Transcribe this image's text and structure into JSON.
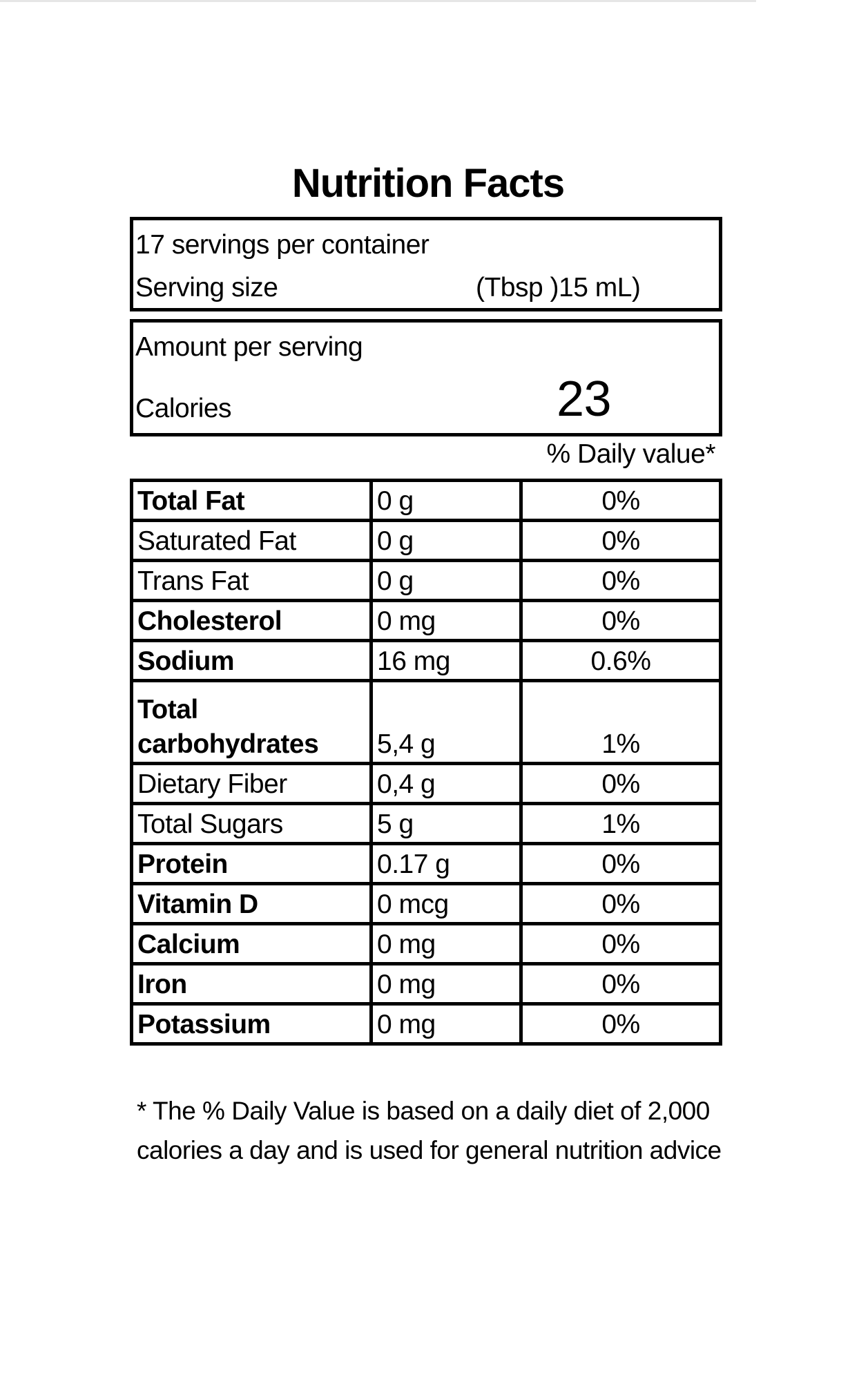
{
  "title": "Nutrition Facts",
  "servings_per_container": "17 servings per container",
  "serving_size_label": "Serving size",
  "serving_size_value": "(Tbsp )15 mL)",
  "amount_per_serving": "Amount per serving",
  "calories_label": "Calories",
  "calories_value": "23",
  "daily_value_header": "% Daily value*",
  "nutrients": [
    {
      "name": "Total Fat",
      "amount": "0 g",
      "dv": "0%",
      "bold": true
    },
    {
      "name": "Saturated Fat",
      "amount": "0 g",
      "dv": "0%",
      "bold": false
    },
    {
      "name": "Trans Fat",
      "amount": "0 g",
      "dv": "0%",
      "bold": false
    },
    {
      "name": "Cholesterol",
      "amount": "0 mg",
      "dv": "0%",
      "bold": true
    },
    {
      "name": "Sodium",
      "amount": "16 mg",
      "dv": "0.6%",
      "bold": true
    },
    {
      "name": "Total carbohydrates",
      "amount": "5,4 g",
      "dv": "1%",
      "bold": true
    },
    {
      "name": "Dietary Fiber",
      "amount": "0,4 g",
      "dv": "0%",
      "bold": false
    },
    {
      "name": "Total Sugars",
      "amount": "5 g",
      "dv": "1%",
      "bold": false
    },
    {
      "name": "Protein",
      "amount": "0.17 g",
      "dv": "0%",
      "bold": true
    },
    {
      "name": "Vitamin D",
      "amount": "0 mcg",
      "dv": "0%",
      "bold": true
    },
    {
      "name": "Calcium",
      "amount": "0 mg",
      "dv": "0%",
      "bold": true
    },
    {
      "name": "Iron",
      "amount": "0 mg",
      "dv": "0%",
      "bold": true
    },
    {
      "name": "Potassium",
      "amount": "0 mg",
      "dv": "0%",
      "bold": true
    }
  ],
  "footnote": "* The % Daily Value is based on a daily diet of 2,000 calories a day and is used for general nutrition advice"
}
